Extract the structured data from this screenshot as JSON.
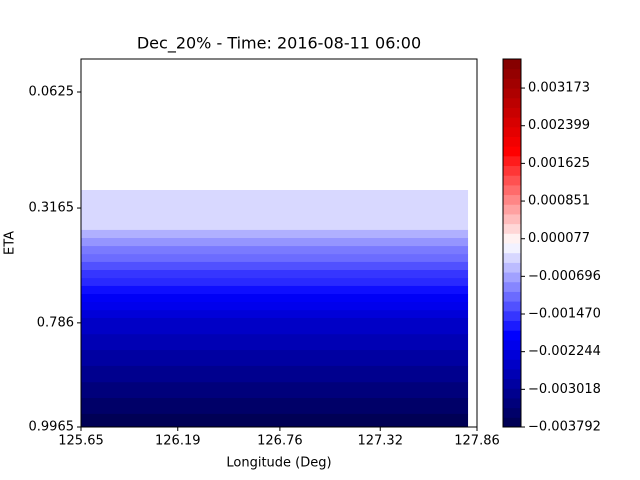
{
  "chart_data": {
    "type": "contourf",
    "title": "Dec_20% - Time: 2016-08-11 06:00",
    "x_label": "Longitude (Deg)",
    "y_label": "ETA",
    "xlim": [
      125.65,
      127.86
    ],
    "xticks": [
      125.65,
      126.19,
      126.76,
      127.32,
      127.86
    ],
    "ylim": [
      -0.01,
      0.9965
    ],
    "y_inverted": true,
    "yticks": [
      0.0625,
      0.3165,
      0.786,
      0.9965
    ],
    "x_extent": [
      125.65,
      127.81
    ],
    "eta_edges": [
      0.277,
      0.406,
      0.439,
      0.472,
      0.505,
      0.537,
      0.57,
      0.603,
      0.635,
      0.668,
      0.701,
      0.734,
      0.766,
      0.809,
      0.841,
      0.873,
      0.906,
      0.938,
      0.97,
      0.9965
    ],
    "values": [
      -0.0003,
      -0.0006,
      -0.0008,
      -0.001,
      -0.0011,
      -0.0013,
      -0.0015,
      -0.0016,
      -0.0018,
      -0.002,
      -0.0021,
      -0.0023,
      -0.0025,
      -0.0027,
      -0.0029,
      -0.0031,
      -0.0033,
      -0.0035,
      -0.0037
    ],
    "cmap": "seismic",
    "clim": [
      -0.003792,
      0.00377
    ],
    "cticks": [
      {
        "value": -0.003792,
        "label": "−0.003792"
      },
      {
        "value": -0.003018,
        "label": "−0.003018"
      },
      {
        "value": -0.002244,
        "label": "−0.002244"
      },
      {
        "value": -0.00147,
        "label": "−0.001470"
      },
      {
        "value": -0.000696,
        "label": "−0.000696"
      },
      7.7e-05,
      0.000851,
      0.001625,
      0.002399,
      0.003173
    ]
  }
}
